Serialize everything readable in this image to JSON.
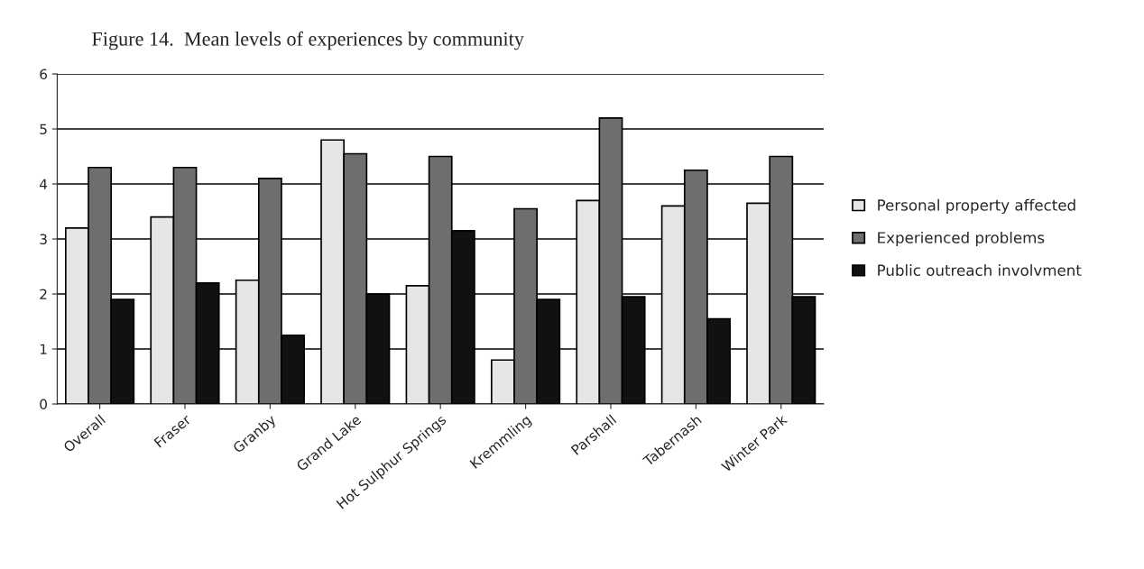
{
  "chart_data": {
    "type": "bar",
    "title": "Figure 14.  Mean levels of experiences by community",
    "categories": [
      "Overall",
      "Fraser",
      "Granby",
      "Grand Lake",
      "Hot Sulphur Springs",
      "Kremmling",
      "Parshall",
      "Tabernash",
      "Winter Park"
    ],
    "series": [
      {
        "name": "Personal property affected",
        "color": "#e6e6e6",
        "values": [
          3.2,
          3.4,
          2.25,
          4.8,
          2.15,
          0.8,
          3.7,
          3.6,
          3.65
        ]
      },
      {
        "name": "Experienced problems",
        "color": "#6e6e6e",
        "values": [
          4.3,
          4.3,
          4.1,
          4.55,
          4.5,
          3.55,
          5.2,
          4.25,
          4.5
        ]
      },
      {
        "name": "Public outreach involvment",
        "color": "#111111",
        "values": [
          1.9,
          2.2,
          1.25,
          2.0,
          3.15,
          1.9,
          1.95,
          1.55,
          1.95
        ]
      }
    ],
    "ylim": [
      0,
      6
    ],
    "yticks": [
      0,
      1,
      2,
      3,
      4,
      5,
      6
    ],
    "grid": "y",
    "legend": "right"
  }
}
